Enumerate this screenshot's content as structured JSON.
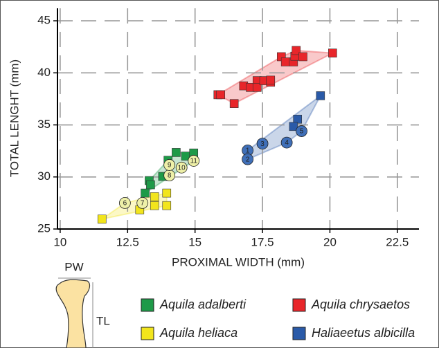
{
  "chart_data": {
    "type": "scatter",
    "x_label": "PROXIMAL WIDTH (mm)",
    "y_label": "TOTAL LENGHT (mm)",
    "xlim": [
      9.9,
      23.3
    ],
    "ylim": [
      25,
      46.2
    ],
    "xticks": [
      10,
      12.5,
      15,
      17.5,
      20,
      22.5
    ],
    "yticks": [
      25,
      30,
      35,
      40,
      45
    ],
    "grid": true,
    "series": [
      {
        "name": "Aquila adalberti",
        "color": "#1e9a48",
        "label_fill": "#eef0a8",
        "x": [
          14.3,
          14.0,
          14.65,
          14.95,
          13.3,
          13.35,
          13.8,
          13.15,
          14.05,
          14.05,
          14.5,
          14.95
        ],
        "y": [
          32.35,
          31.6,
          32.0,
          32.3,
          29.65,
          29.25,
          30.05,
          28.45,
          30.15,
          31.15,
          30.9,
          31.55
        ],
        "labels": [
          null,
          null,
          null,
          null,
          null,
          null,
          null,
          null,
          8,
          9,
          10,
          11
        ]
      },
      {
        "name": "Aquila chrysaetos",
        "color": "#e8262a",
        "x": [
          15.85,
          15.95,
          16.45,
          16.8,
          17.05,
          17.3,
          17.3,
          17.55,
          17.8,
          17.8,
          18.2,
          18.35,
          18.65,
          18.7,
          18.75,
          19.0,
          20.1
        ],
        "y": [
          37.9,
          37.9,
          37.05,
          38.75,
          38.6,
          39.25,
          38.6,
          39.25,
          39.1,
          39.3,
          41.55,
          41.05,
          41.05,
          41.6,
          42.15,
          41.55,
          41.9
        ],
        "labels": [
          null,
          null,
          null,
          null,
          null,
          null,
          null,
          null,
          null,
          null,
          null,
          null,
          null,
          null,
          null,
          null,
          null
        ]
      },
      {
        "name": "Aquila heliaca",
        "color": "#f2e51c",
        "label_fill": "#eef0a8",
        "x": [
          11.55,
          12.95,
          13.5,
          13.5,
          13.95,
          13.95,
          12.4,
          13.05
        ],
        "y": [
          25.95,
          26.85,
          27.25,
          28.1,
          27.25,
          28.45,
          27.5,
          27.5
        ],
        "labels": [
          null,
          null,
          null,
          null,
          null,
          null,
          6,
          7
        ]
      },
      {
        "name": "Haliaeetus albicilla",
        "color": "#2a5aa8",
        "label_fill": "#3f6fb8",
        "x": [
          19.65,
          18.8,
          18.65,
          16.95,
          16.95,
          17.5,
          18.4,
          18.95
        ],
        "y": [
          37.8,
          35.55,
          34.85,
          32.55,
          31.7,
          33.2,
          33.3,
          34.4
        ],
        "labels": [
          null,
          null,
          null,
          1,
          2,
          3,
          4,
          5
        ]
      }
    ],
    "diagram": {
      "width_label": "PW",
      "length_label": "TL"
    }
  }
}
